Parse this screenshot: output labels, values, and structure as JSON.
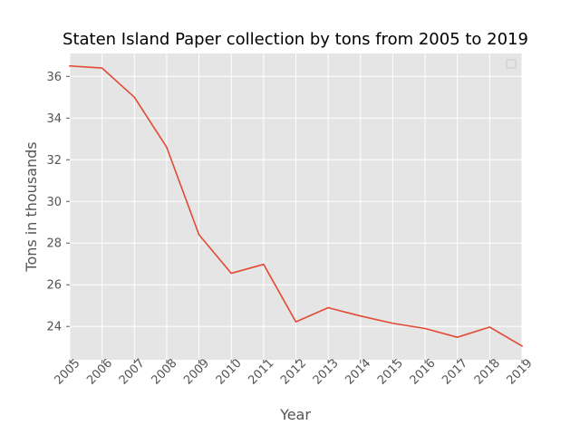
{
  "chart_data": {
    "type": "line",
    "title": "Staten Island Paper collection by tons from 2005 to 2019",
    "xlabel": "Year",
    "ylabel": "Tons in thousands",
    "x": [
      "2005",
      "2006",
      "2007",
      "2008",
      "2009",
      "2010",
      "2011",
      "2012",
      "2013",
      "2014",
      "2015",
      "2016",
      "2017",
      "2018",
      "2019"
    ],
    "series": [
      {
        "values": [
          36.5,
          36.4,
          35.0,
          32.6,
          28.4,
          26.55,
          26.98,
          24.22,
          24.9,
          24.5,
          24.15,
          23.9,
          23.48,
          23.97,
          23.06
        ],
        "color": "#e24a33"
      }
    ],
    "ylim": [
      22.4,
      37.1
    ],
    "yticks": [
      24,
      26,
      28,
      30,
      32,
      34,
      36
    ],
    "grid": true,
    "legend": "top-right (empty)",
    "background": "#e5e5e5",
    "grid_color": "#ffffff",
    "tick_color": "#555555",
    "xtick_rotation": 45
  }
}
